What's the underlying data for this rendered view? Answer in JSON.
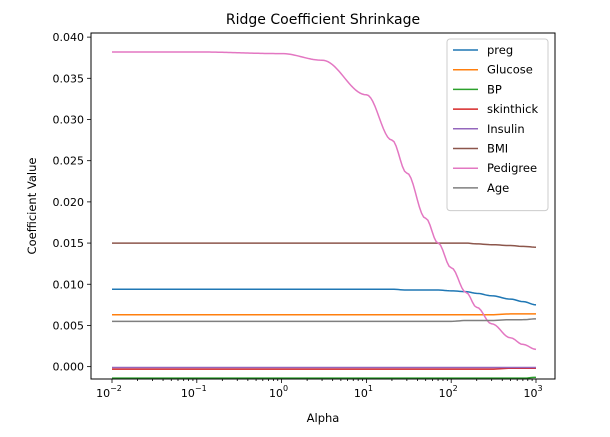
{
  "chart_data": {
    "type": "line",
    "title": "Ridge Coefficient Shrinkage",
    "xlabel": "Alpha",
    "ylabel": "Coefficient Value",
    "xscale": "log",
    "xlim": [
      0.01,
      1000
    ],
    "ylim": [
      -0.0015,
      0.0405
    ],
    "x_ticks": [
      {
        "base": "10",
        "exp": "−2",
        "value": 0.01
      },
      {
        "base": "10",
        "exp": "−1",
        "value": 0.1
      },
      {
        "base": "10",
        "exp": "0",
        "value": 1
      },
      {
        "base": "10",
        "exp": "1",
        "value": 10
      },
      {
        "base": "10",
        "exp": "2",
        "value": 100
      },
      {
        "base": "10",
        "exp": "3",
        "value": 1000
      }
    ],
    "y_ticks": [
      "0.000",
      "0.005",
      "0.010",
      "0.015",
      "0.020",
      "0.025",
      "0.030",
      "0.035",
      "0.040"
    ],
    "y_tick_values": [
      0,
      0.005,
      0.01,
      0.015,
      0.02,
      0.025,
      0.03,
      0.035,
      0.04
    ],
    "grid": false,
    "legend_position": "top-right",
    "x": [
      0.01,
      0.1,
      1,
      3,
      10,
      20,
      30,
      50,
      70,
      100,
      150,
      200,
      300,
      500,
      700,
      1000
    ],
    "series": [
      {
        "name": "preg",
        "color": "#1f77b4",
        "values": [
          0.0094,
          0.0094,
          0.0094,
          0.0094,
          0.0094,
          0.0094,
          0.0093,
          0.0093,
          0.0093,
          0.0092,
          0.0091,
          0.0089,
          0.0086,
          0.0082,
          0.0079,
          0.0075
        ]
      },
      {
        "name": "Glucose",
        "color": "#ff7f0e",
        "values": [
          0.0063,
          0.0063,
          0.0063,
          0.0063,
          0.0063,
          0.0063,
          0.0063,
          0.0063,
          0.0063,
          0.0063,
          0.0063,
          0.0063,
          0.0063,
          0.0064,
          0.0064,
          0.0064
        ]
      },
      {
        "name": "BP",
        "color": "#2ca02c",
        "values": [
          -0.0014,
          -0.0014,
          -0.0014,
          -0.0014,
          -0.0014,
          -0.0014,
          -0.0014,
          -0.0014,
          -0.0014,
          -0.0014,
          -0.0014,
          -0.0014,
          -0.0014,
          -0.0014,
          -0.0014,
          -0.0013
        ]
      },
      {
        "name": "skinthick",
        "color": "#d62728",
        "values": [
          -0.0003,
          -0.0003,
          -0.0003,
          -0.0003,
          -0.0003,
          -0.0003,
          -0.0003,
          -0.0003,
          -0.0003,
          -0.0003,
          -0.0003,
          -0.0003,
          -0.0003,
          -0.0002,
          -0.0002,
          -0.0002
        ]
      },
      {
        "name": "Insulin",
        "color": "#9467bd",
        "values": [
          -0.0001,
          -0.0001,
          -0.0001,
          -0.0001,
          -0.0001,
          -0.0001,
          -0.0001,
          -0.0001,
          -0.0001,
          -0.0001,
          -0.0001,
          -0.0001,
          -0.0001,
          -0.0001,
          -0.0001,
          -0.0001
        ]
      },
      {
        "name": "BMI",
        "color": "#8c564b",
        "values": [
          0.015,
          0.015,
          0.015,
          0.015,
          0.015,
          0.015,
          0.015,
          0.015,
          0.015,
          0.015,
          0.015,
          0.0149,
          0.0148,
          0.0147,
          0.0146,
          0.0145
        ]
      },
      {
        "name": "Pedigree",
        "color": "#e377c2",
        "values": [
          0.0382,
          0.0382,
          0.038,
          0.0372,
          0.033,
          0.0275,
          0.0235,
          0.018,
          0.015,
          0.012,
          0.009,
          0.0072,
          0.0052,
          0.0035,
          0.0027,
          0.0021
        ]
      },
      {
        "name": "Age",
        "color": "#7f7f7f",
        "values": [
          0.0055,
          0.0055,
          0.0055,
          0.0055,
          0.0055,
          0.0055,
          0.0055,
          0.0055,
          0.0055,
          0.0055,
          0.0056,
          0.0056,
          0.0056,
          0.0057,
          0.0057,
          0.0058
        ]
      }
    ]
  }
}
